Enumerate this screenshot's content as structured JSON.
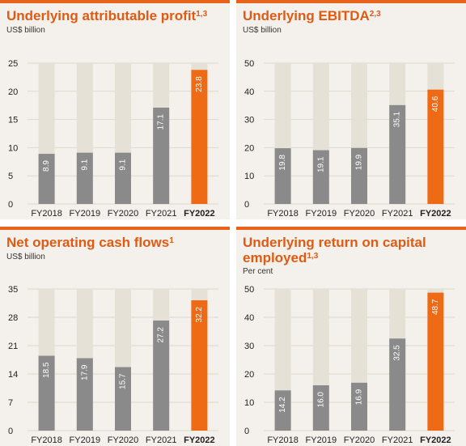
{
  "colors": {
    "accent": "#e8631a",
    "title": "#e05a12",
    "bar_gray": "#8a8a8a",
    "bar_highlight": "#ef6a14",
    "track": "#e6e1d6",
    "panel_bg": "#f4f1ec"
  },
  "chart_data": [
    {
      "type": "bar",
      "title": "Underlying attributable profit",
      "title_sup": "1,3",
      "unit": "US$ billion",
      "categories": [
        "FY2018",
        "FY2019",
        "FY2020",
        "FY2021",
        "FY2022"
      ],
      "values": [
        8.9,
        9.1,
        9.1,
        17.1,
        23.8
      ],
      "value_labels": [
        "8.9",
        "9.1",
        "9.1",
        "17.1",
        "23.8"
      ],
      "highlight_index": 4,
      "ylim": [
        0,
        25
      ],
      "yticks": [
        0,
        5,
        10,
        15,
        20,
        25
      ]
    },
    {
      "type": "bar",
      "title": "Underlying EBITDA",
      "title_sup": "2,3",
      "unit": "US$ billion",
      "categories": [
        "FY2018",
        "FY2019",
        "FY2020",
        "FY2021",
        "FY2022"
      ],
      "values": [
        19.8,
        19.1,
        19.9,
        35.1,
        40.6
      ],
      "value_labels": [
        "19.8",
        "19.1",
        "19.9",
        "35.1",
        "40.6"
      ],
      "highlight_index": 4,
      "ylim": [
        0,
        50
      ],
      "yticks": [
        0,
        10,
        20,
        30,
        40,
        50
      ]
    },
    {
      "type": "bar",
      "title": "Net operating cash flows",
      "title_sup": "1",
      "unit": "US$ billion",
      "categories": [
        "FY2018",
        "FY2019",
        "FY2020",
        "FY2021",
        "FY2022"
      ],
      "values": [
        18.5,
        17.9,
        15.7,
        27.2,
        32.2
      ],
      "value_labels": [
        "18.5",
        "17.9",
        "15.7",
        "27.2",
        "32.2"
      ],
      "highlight_index": 4,
      "ylim": [
        0,
        35
      ],
      "yticks": [
        0,
        7,
        14,
        21,
        28,
        35
      ]
    },
    {
      "type": "bar",
      "title": "Underlying return on capital employed",
      "title_sup": "1,3",
      "unit": "Per cent",
      "categories": [
        "FY2018",
        "FY2019",
        "FY2020",
        "FY2021",
        "FY2022"
      ],
      "values": [
        14.2,
        16.0,
        16.9,
        32.5,
        48.7
      ],
      "value_labels": [
        "14.2",
        "16.0",
        "16.9",
        "32.5",
        "48.7"
      ],
      "highlight_index": 4,
      "ylim": [
        0,
        50
      ],
      "yticks": [
        0,
        10,
        20,
        30,
        40,
        50
      ]
    }
  ]
}
